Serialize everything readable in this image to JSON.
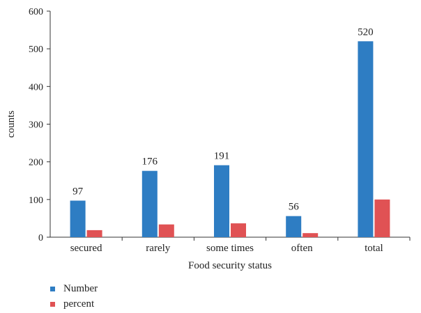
{
  "chart_data": {
    "type": "bar",
    "categories": [
      "secured",
      "rarely",
      "some times",
      "often",
      "total"
    ],
    "series": [
      {
        "name": "Number",
        "values": [
          97,
          176,
          191,
          56,
          520
        ],
        "color": "#2E7DC3",
        "data_labels": [
          "97",
          "176",
          "191",
          "56",
          "520"
        ]
      },
      {
        "name": "percent",
        "values": [
          18.65,
          33.85,
          36.73,
          10.77,
          100
        ],
        "color": "#E05254"
      }
    ],
    "xlabel": "Food security status",
    "ylabel": "counts",
    "ylim": [
      0,
      600
    ],
    "yticks": [
      "0",
      "100",
      "200",
      "300",
      "400",
      "500",
      "600"
    ],
    "grid": false,
    "legend_position": "bottom-left"
  }
}
